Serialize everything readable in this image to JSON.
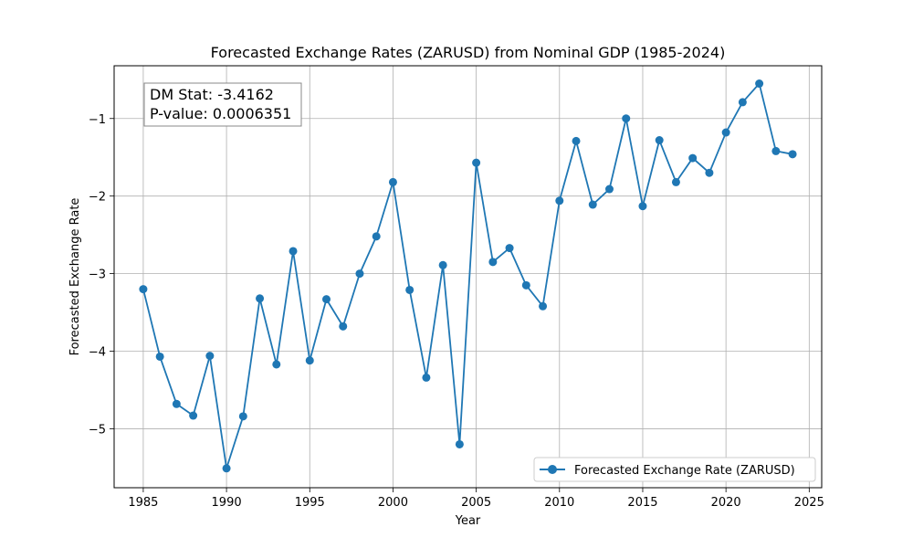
{
  "chart_data": {
    "type": "line",
    "title": "Forecasted Exchange Rates (ZARUSD) from Nominal GDP (1985-2024)",
    "xlabel": "Year",
    "ylabel": "Forecasted Exchange Rate",
    "xlim": [
      1983.25,
      2025.75
    ],
    "ylim": [
      -5.76,
      -0.32
    ],
    "x_ticks": [
      1985,
      1990,
      1995,
      2000,
      2005,
      2010,
      2015,
      2020,
      2025
    ],
    "y_ticks": [
      -5,
      -4,
      -3,
      -2,
      -1
    ],
    "y_tick_labels": [
      "−5",
      "−4",
      "−3",
      "−2",
      "−1"
    ],
    "grid": true,
    "legend_placement": "lower-right",
    "series": [
      {
        "name": "Forecasted Exchange Rate (ZARUSD)",
        "color": "#1f77b4",
        "marker": "circle",
        "x": [
          1985,
          1986,
          1987,
          1988,
          1989,
          1990,
          1991,
          1992,
          1993,
          1994,
          1995,
          1996,
          1997,
          1998,
          1999,
          2000,
          2001,
          2002,
          2003,
          2004,
          2005,
          2006,
          2007,
          2008,
          2009,
          2010,
          2011,
          2012,
          2013,
          2014,
          2015,
          2016,
          2017,
          2018,
          2019,
          2020,
          2021,
          2022,
          2023,
          2024
        ],
        "values": [
          -3.2,
          -4.07,
          -4.68,
          -4.83,
          -4.06,
          -5.51,
          -4.84,
          -3.32,
          -4.17,
          -2.71,
          -4.12,
          -3.33,
          -3.68,
          -3.0,
          -2.52,
          -1.82,
          -3.21,
          -4.34,
          -2.89,
          -5.2,
          -1.57,
          -2.85,
          -2.67,
          -3.15,
          -3.42,
          -2.06,
          -1.29,
          -2.11,
          -1.91,
          -1.0,
          -2.13,
          -1.28,
          -1.82,
          -1.51,
          -1.7,
          -1.18,
          -0.79,
          -0.55,
          -1.42,
          -1.46
        ]
      }
    ],
    "annotation": {
      "lines": [
        "DM Stat: -3.4162",
        "P-value: 0.0006351"
      ]
    }
  }
}
